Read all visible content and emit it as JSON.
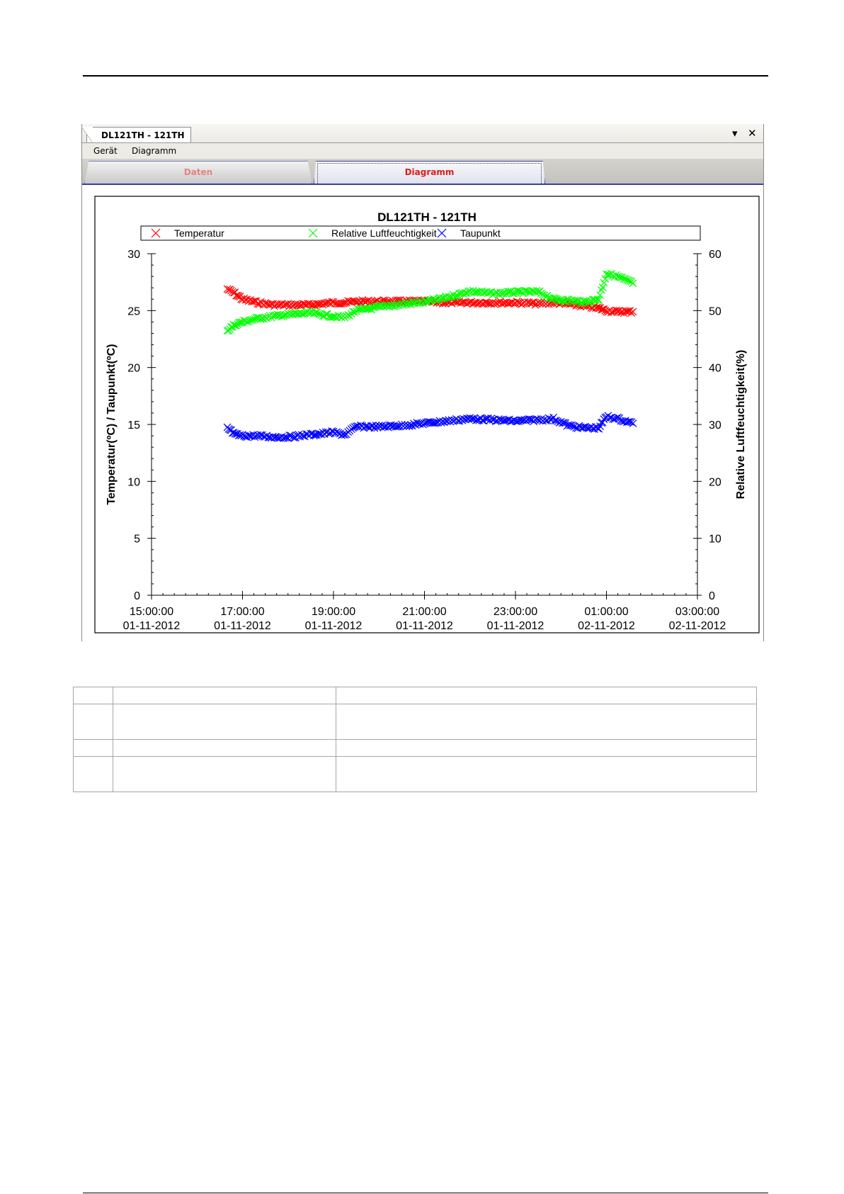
{
  "window": {
    "doc_tab": "DL121TH - 121TH",
    "menu": [
      "Gerät",
      "Diagramm"
    ],
    "tabs": [
      "Daten",
      "Diagramm"
    ],
    "active_tab": "Diagramm",
    "controls": {
      "dropdown": "▾",
      "close": "✕"
    }
  },
  "chart_data": {
    "type": "scatter",
    "title": "DL121TH - 121TH",
    "ylabel": "Temperatur(ºC) / Taupunkt(ºC)",
    "y2label": "Relative Luftfeuchtigkeit(%)",
    "ylim": [
      0,
      30
    ],
    "y2lim": [
      0,
      60
    ],
    "yticks": [
      "0",
      "5",
      "10",
      "15",
      "20",
      "25",
      "30"
    ],
    "y2ticks": [
      "0",
      "10",
      "20",
      "30",
      "40",
      "50",
      "60"
    ],
    "xlim": [
      "2012-11-01 15:00",
      "2012-11-02 03:00"
    ],
    "xticks": [
      {
        "time": "15:00:00",
        "date": "01-11-2012"
      },
      {
        "time": "17:00:00",
        "date": "01-11-2012"
      },
      {
        "time": "19:00:00",
        "date": "01-11-2012"
      },
      {
        "time": "21:00:00",
        "date": "01-11-2012"
      },
      {
        "time": "23:00:00",
        "date": "01-11-2012"
      },
      {
        "time": "01:00:00",
        "date": "02-11-2012"
      },
      {
        "time": "03:00:00",
        "date": "02-11-2012"
      }
    ],
    "grid": false,
    "legend_position": "top",
    "x": [
      "2012-11-01 16:40",
      "2012-11-01 16:50",
      "2012-11-01 17:00",
      "2012-11-01 17:20",
      "2012-11-01 17:40",
      "2012-11-01 18:00",
      "2012-11-01 18:30",
      "2012-11-01 19:00",
      "2012-11-01 19:15",
      "2012-11-01 19:30",
      "2012-11-01 20:00",
      "2012-11-01 20:30",
      "2012-11-01 21:00",
      "2012-11-01 21:30",
      "2012-11-01 22:00",
      "2012-11-01 22:30",
      "2012-11-01 23:00",
      "2012-11-01 23:30",
      "2012-11-01 23:50",
      "2012-11-02 00:10",
      "2012-11-02 00:30",
      "2012-11-02 00:50",
      "2012-11-02 01:00",
      "2012-11-02 01:15",
      "2012-11-02 01:35"
    ],
    "series": [
      {
        "name": "Temperatur",
        "axis": "left",
        "color": "#ff0000",
        "values": [
          26.9,
          26.5,
          26.0,
          25.7,
          25.5,
          25.5,
          25.5,
          25.7,
          25.7,
          25.8,
          25.8,
          25.8,
          25.8,
          25.7,
          25.7,
          25.7,
          25.7,
          25.6,
          25.7,
          25.6,
          25.4,
          25.2,
          25.0,
          24.9,
          24.9
        ]
      },
      {
        "name": "Relative Luftfeuchtigkeit",
        "axis": "right",
        "color": "#00ff00",
        "values": [
          46.5,
          47.5,
          48.0,
          48.6,
          49.0,
          49.3,
          49.6,
          49.0,
          48.8,
          50.0,
          50.6,
          51.1,
          51.5,
          52.3,
          53.4,
          53.0,
          53.2,
          53.3,
          52.0,
          51.8,
          51.5,
          52.0,
          56.5,
          56.0,
          54.8
        ]
      },
      {
        "name": "Taupunkt",
        "axis": "left",
        "color": "#0000ff",
        "values": [
          14.7,
          14.1,
          14.0,
          14.0,
          13.9,
          13.9,
          14.1,
          14.3,
          14.1,
          14.8,
          14.8,
          14.9,
          15.1,
          15.3,
          15.5,
          15.4,
          15.3,
          15.4,
          15.5,
          14.9,
          14.7,
          14.7,
          15.7,
          15.5,
          15.1
        ]
      }
    ]
  }
}
